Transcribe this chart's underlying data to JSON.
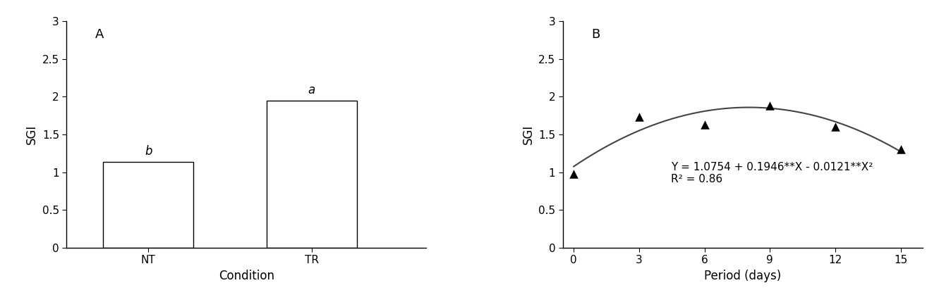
{
  "bar_categories": [
    "NT",
    "TR"
  ],
  "bar_values": [
    1.14,
    1.95
  ],
  "bar_labels": [
    "b",
    "a"
  ],
  "bar_color": "#ffffff",
  "bar_edgecolor": "#000000",
  "bar_xlabel": "Condition",
  "bar_ylabel": "SGI",
  "bar_ylim": [
    0,
    3
  ],
  "bar_yticks": [
    0,
    0.5,
    1,
    1.5,
    2,
    2.5,
    3
  ],
  "bar_panel_label": "A",
  "scatter_x": [
    0,
    3,
    6,
    9,
    12,
    15
  ],
  "scatter_y": [
    0.98,
    1.73,
    1.63,
    1.88,
    1.6,
    1.3
  ],
  "scatter_marker": "^",
  "scatter_color": "#000000",
  "scatter_markersize": 9,
  "curve_a0": 1.0754,
  "curve_a1": 0.1946,
  "curve_a2": -0.0121,
  "scatter_xlabel": "Period (days)",
  "scatter_ylabel": "SGI",
  "scatter_ylim": [
    0,
    3
  ],
  "scatter_yticks": [
    0,
    0.5,
    1,
    1.5,
    2,
    2.5,
    3
  ],
  "scatter_xticks": [
    0,
    3,
    6,
    9,
    12,
    15
  ],
  "scatter_panel_label": "B",
  "fig_width": 13.48,
  "fig_height": 4.29,
  "dpi": 100,
  "background_color": "#ffffff",
  "text_color": "#000000",
  "fontsize_labels": 12,
  "fontsize_ticks": 11,
  "fontsize_panel": 13,
  "fontsize_annotation": 11,
  "line_color": "#444444",
  "line_width": 1.5
}
